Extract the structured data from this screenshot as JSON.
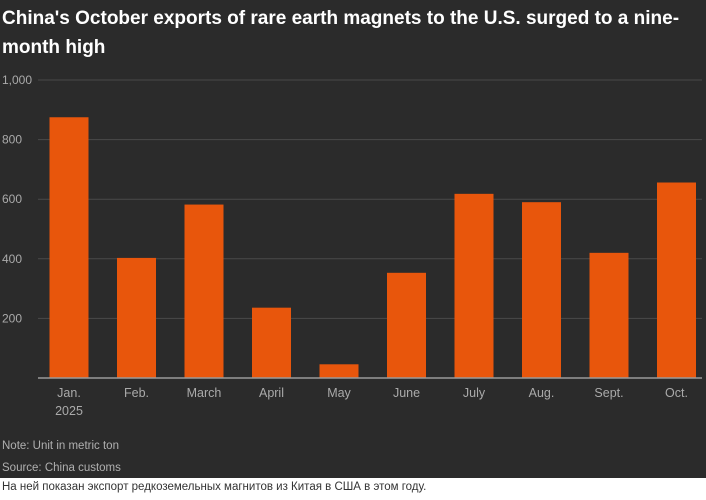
{
  "title": "China's October exports of rare earth magnets to the U.S. surged to a nine-month high",
  "note": "Note: Unit in metric ton",
  "source": "Source: China customs",
  "caption": "На ней показан экспорт редкоземельных магнитов из Китая в США в этом году.",
  "colors": {
    "background": "#2b2b2b",
    "bar": "#e8560c",
    "grid": "#4a4a4a",
    "axis": "#9a9a9a",
    "tick_text": "#aaaaaa",
    "title": "#ffffff"
  },
  "chart_data": {
    "type": "bar",
    "title": "China's October exports of rare earth magnets to the U.S. surged to a nine-month high",
    "categories": [
      "Jan.\n2025",
      "Feb.",
      "March",
      "April",
      "May",
      "June",
      "July",
      "Aug.",
      "Sept.",
      "Oct."
    ],
    "values": [
      875,
      403,
      582,
      236,
      46,
      353,
      618,
      590,
      420,
      656
    ],
    "unit": "metric ton",
    "xlabel": "",
    "ylabel": "",
    "ylim": [
      0,
      1000
    ],
    "yticks": [
      200,
      400,
      600,
      800,
      1000
    ],
    "ytick_labels": [
      "200",
      "400",
      "600",
      "800",
      "1,000"
    ],
    "grid": true,
    "legend": "none"
  }
}
